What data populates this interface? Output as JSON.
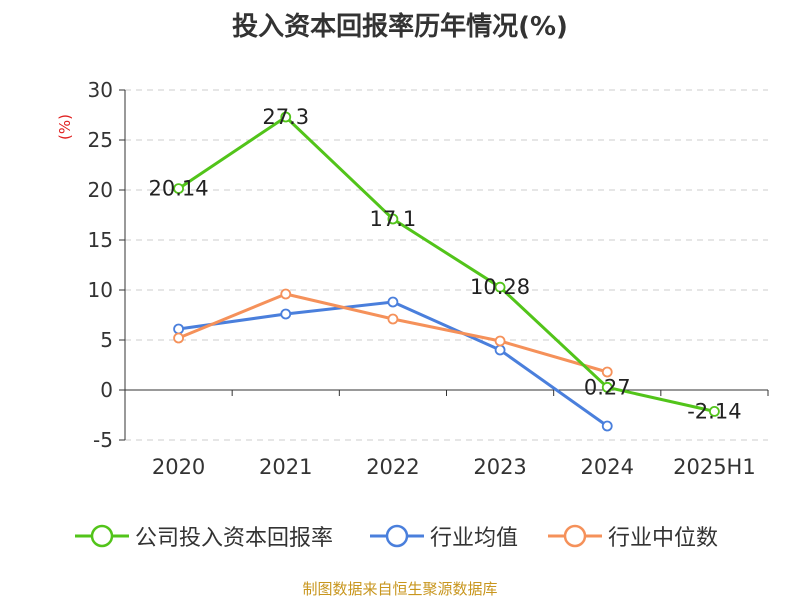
{
  "title": "投入资本回报率历年情况(%)",
  "source": "制图数据来自恒生聚源数据库",
  "chart_data": {
    "type": "line",
    "title": "投入资本回报率历年情况(%)",
    "ylabel": "(%)",
    "xlabel": "",
    "categories": [
      "2020",
      "2021",
      "2022",
      "2023",
      "2024",
      "2025H1"
    ],
    "ylim": [
      -5,
      30
    ],
    "yticks": [
      -5,
      0,
      5,
      10,
      15,
      20,
      25,
      30
    ],
    "grid": true,
    "legend_position": "bottom",
    "series": [
      {
        "name": "公司投入资本回报率",
        "color": "#52c41a",
        "values": [
          20.14,
          27.3,
          17.1,
          10.28,
          0.27,
          -2.14
        ],
        "labels": [
          "20.14",
          "27.3",
          "17.1",
          "10.28",
          "0.27",
          "-2.14"
        ]
      },
      {
        "name": "行业均值",
        "color": "#4a7fdc",
        "values": [
          6.1,
          7.6,
          8.8,
          4.0,
          -3.6,
          null
        ]
      },
      {
        "name": "行业中位数",
        "color": "#f5915a",
        "values": [
          5.2,
          9.6,
          7.1,
          4.9,
          1.8,
          null
        ]
      }
    ]
  }
}
